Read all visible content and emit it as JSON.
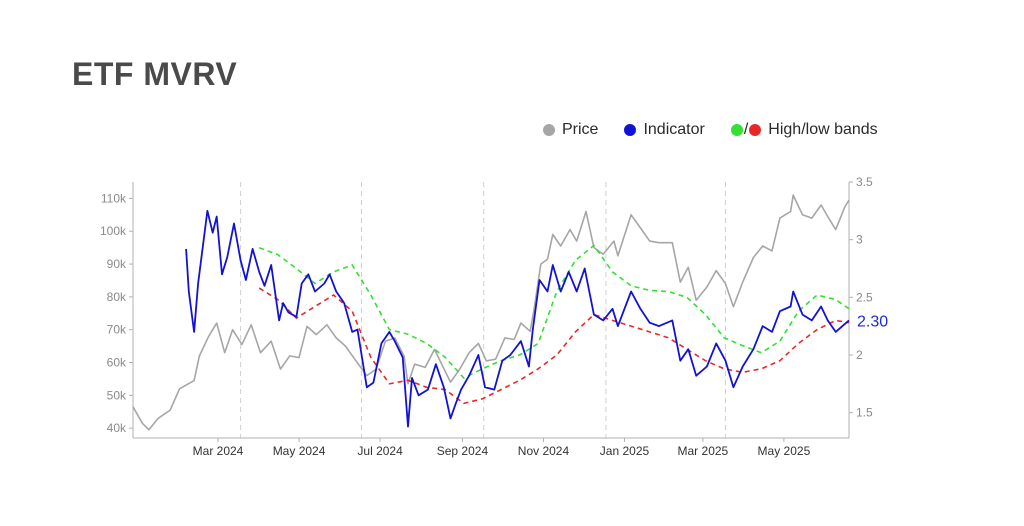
{
  "title": "ETF MVRV",
  "colors": {
    "price": "#a6a6a6",
    "indicator": "#1212d6",
    "high_band": "#33e033",
    "low_band": "#e82828",
    "axis": "#b0b0b0",
    "grid": "#cfcfcf"
  },
  "legend": {
    "price": "Price",
    "indicator": "Indicator",
    "slash": "/",
    "bands": "High/low bands"
  },
  "chart_data": {
    "type": "line",
    "x_tick_labels": [
      "Mar 2024",
      "May 2024",
      "Jul 2024",
      "Sep 2024",
      "Nov 2024",
      "Jan 2025",
      "Mar 2025",
      "May 2025"
    ],
    "y_left": {
      "ticks": [
        "40k",
        "50k",
        "60k",
        "70k",
        "80k",
        "90k",
        "100k",
        "110k"
      ],
      "range": [
        37000,
        115000
      ]
    },
    "y_right": {
      "ticks": [
        "1.5",
        "2",
        "2.5",
        "3",
        "3.5"
      ],
      "range": [
        1.28,
        3.5
      ]
    },
    "last_value_label": "2.30",
    "series": [
      {
        "name": "Price",
        "axis": "left",
        "points": [
          [
            "2024-01-11",
            46500
          ],
          [
            "2024-01-18",
            41500
          ],
          [
            "2024-01-23",
            39500
          ],
          [
            "2024-01-30",
            43000
          ],
          [
            "2024-02-08",
            45500
          ],
          [
            "2024-02-15",
            52000
          ],
          [
            "2024-02-26",
            54500
          ],
          [
            "2024-03-01",
            62000
          ],
          [
            "2024-03-08",
            68000
          ],
          [
            "2024-03-14",
            72000
          ],
          [
            "2024-03-20",
            63000
          ],
          [
            "2024-03-26",
            70000
          ],
          [
            "2024-04-02",
            65500
          ],
          [
            "2024-04-09",
            71500
          ],
          [
            "2024-04-16",
            63000
          ],
          [
            "2024-04-24",
            66500
          ],
          [
            "2024-05-01",
            58000
          ],
          [
            "2024-05-08",
            62000
          ],
          [
            "2024-05-15",
            61500
          ],
          [
            "2024-05-21",
            71000
          ],
          [
            "2024-05-28",
            68500
          ],
          [
            "2024-06-05",
            71500
          ],
          [
            "2024-06-12",
            67500
          ],
          [
            "2024-06-19",
            65000
          ],
          [
            "2024-06-26",
            61000
          ],
          [
            "2024-07-05",
            56000
          ],
          [
            "2024-07-12",
            58000
          ],
          [
            "2024-07-19",
            66500
          ],
          [
            "2024-07-26",
            67500
          ],
          [
            "2024-08-02",
            62000
          ],
          [
            "2024-08-05",
            53500
          ],
          [
            "2024-08-10",
            59500
          ],
          [
            "2024-08-18",
            58500
          ],
          [
            "2024-08-25",
            64000
          ],
          [
            "2024-08-31",
            59000
          ],
          [
            "2024-09-06",
            54000
          ],
          [
            "2024-09-13",
            58000
          ],
          [
            "2024-09-20",
            63000
          ],
          [
            "2024-09-27",
            65800
          ],
          [
            "2024-10-03",
            60500
          ],
          [
            "2024-10-10",
            61000
          ],
          [
            "2024-10-17",
            67500
          ],
          [
            "2024-10-24",
            67000
          ],
          [
            "2024-10-29",
            72000
          ],
          [
            "2024-11-05",
            69500
          ],
          [
            "2024-11-08",
            76500
          ],
          [
            "2024-11-13",
            90000
          ],
          [
            "2024-11-18",
            91500
          ],
          [
            "2024-11-22",
            99000
          ],
          [
            "2024-11-28",
            95500
          ],
          [
            "2024-12-05",
            100500
          ],
          [
            "2024-12-10",
            97000
          ],
          [
            "2024-12-17",
            106000
          ],
          [
            "2024-12-23",
            95000
          ],
          [
            "2024-12-30",
            93000
          ],
          [
            "2025-01-07",
            97000
          ],
          [
            "2025-01-10",
            92500
          ],
          [
            "2025-01-20",
            105000
          ],
          [
            "2025-01-27",
            101000
          ],
          [
            "2025-02-03",
            97000
          ],
          [
            "2025-02-10",
            96500
          ],
          [
            "2025-02-20",
            96500
          ],
          [
            "2025-02-26",
            84500
          ],
          [
            "2025-03-04",
            89000
          ],
          [
            "2025-03-10",
            79000
          ],
          [
            "2025-03-18",
            83000
          ],
          [
            "2025-03-25",
            88000
          ],
          [
            "2025-04-01",
            84000
          ],
          [
            "2025-04-07",
            77000
          ],
          [
            "2025-04-14",
            84500
          ],
          [
            "2025-04-22",
            92000
          ],
          [
            "2025-04-29",
            95500
          ],
          [
            "2025-05-06",
            94000
          ],
          [
            "2025-05-12",
            104000
          ],
          [
            "2025-05-20",
            106000
          ],
          [
            "2025-05-22",
            111000
          ],
          [
            "2025-05-29",
            105000
          ],
          [
            "2025-06-05",
            104000
          ],
          [
            "2025-06-12",
            108000
          ],
          [
            "2025-06-17",
            104500
          ],
          [
            "2025-06-23",
            100500
          ],
          [
            "2025-06-30",
            107500
          ],
          [
            "2025-07-03",
            109500
          ]
        ]
      },
      {
        "name": "Indicator",
        "axis": "right",
        "points": [
          [
            "2024-02-20",
            2.92
          ],
          [
            "2024-02-22",
            2.55
          ],
          [
            "2024-02-26",
            2.2
          ],
          [
            "2024-02-29",
            2.62
          ],
          [
            "2024-03-04",
            2.98
          ],
          [
            "2024-03-07",
            3.25
          ],
          [
            "2024-03-11",
            3.06
          ],
          [
            "2024-03-14",
            3.2
          ],
          [
            "2024-03-18",
            2.7
          ],
          [
            "2024-03-22",
            2.85
          ],
          [
            "2024-03-27",
            3.14
          ],
          [
            "2024-04-01",
            2.82
          ],
          [
            "2024-04-05",
            2.65
          ],
          [
            "2024-04-10",
            2.92
          ],
          [
            "2024-04-15",
            2.72
          ],
          [
            "2024-04-19",
            2.6
          ],
          [
            "2024-04-24",
            2.78
          ],
          [
            "2024-04-30",
            2.3
          ],
          [
            "2024-05-03",
            2.45
          ],
          [
            "2024-05-07",
            2.37
          ],
          [
            "2024-05-13",
            2.33
          ],
          [
            "2024-05-17",
            2.62
          ],
          [
            "2024-05-22",
            2.7
          ],
          [
            "2024-05-27",
            2.55
          ],
          [
            "2024-06-03",
            2.62
          ],
          [
            "2024-06-07",
            2.7
          ],
          [
            "2024-06-12",
            2.55
          ],
          [
            "2024-06-18",
            2.45
          ],
          [
            "2024-06-24",
            2.2
          ],
          [
            "2024-06-28",
            2.22
          ],
          [
            "2024-07-05",
            1.72
          ],
          [
            "2024-07-10",
            1.76
          ],
          [
            "2024-07-16",
            2.1
          ],
          [
            "2024-07-22",
            2.2
          ],
          [
            "2024-07-26",
            2.12
          ],
          [
            "2024-08-01",
            1.98
          ],
          [
            "2024-08-05",
            1.38
          ],
          [
            "2024-08-08",
            1.8
          ],
          [
            "2024-08-13",
            1.65
          ],
          [
            "2024-08-20",
            1.7
          ],
          [
            "2024-08-26",
            1.92
          ],
          [
            "2024-09-01",
            1.72
          ],
          [
            "2024-09-06",
            1.45
          ],
          [
            "2024-09-10",
            1.58
          ],
          [
            "2024-09-14",
            1.7
          ],
          [
            "2024-09-20",
            1.82
          ],
          [
            "2024-09-27",
            2.0
          ],
          [
            "2024-10-02",
            1.72
          ],
          [
            "2024-10-09",
            1.7
          ],
          [
            "2024-10-15",
            1.95
          ],
          [
            "2024-10-21",
            2.0
          ],
          [
            "2024-10-29",
            2.12
          ],
          [
            "2024-11-04",
            1.9
          ],
          [
            "2024-11-07",
            2.22
          ],
          [
            "2024-11-12",
            2.65
          ],
          [
            "2024-11-18",
            2.55
          ],
          [
            "2024-11-22",
            2.78
          ],
          [
            "2024-11-28",
            2.55
          ],
          [
            "2024-12-04",
            2.72
          ],
          [
            "2024-12-10",
            2.55
          ],
          [
            "2024-12-16",
            2.75
          ],
          [
            "2024-12-23",
            2.35
          ],
          [
            "2024-12-30",
            2.3
          ],
          [
            "2025-01-06",
            2.4
          ],
          [
            "2025-01-10",
            2.25
          ],
          [
            "2025-01-20",
            2.55
          ],
          [
            "2025-01-27",
            2.4
          ],
          [
            "2025-02-03",
            2.28
          ],
          [
            "2025-02-10",
            2.25
          ],
          [
            "2025-02-20",
            2.3
          ],
          [
            "2025-02-26",
            1.95
          ],
          [
            "2025-03-04",
            2.05
          ],
          [
            "2025-03-10",
            1.82
          ],
          [
            "2025-03-18",
            1.9
          ],
          [
            "2025-03-25",
            2.1
          ],
          [
            "2025-04-01",
            1.95
          ],
          [
            "2025-04-07",
            1.72
          ],
          [
            "2025-04-14",
            1.9
          ],
          [
            "2025-04-22",
            2.05
          ],
          [
            "2025-04-29",
            2.25
          ],
          [
            "2025-05-06",
            2.2
          ],
          [
            "2025-05-12",
            2.38
          ],
          [
            "2025-05-20",
            2.42
          ],
          [
            "2025-05-22",
            2.55
          ],
          [
            "2025-05-29",
            2.35
          ],
          [
            "2025-06-05",
            2.3
          ],
          [
            "2025-06-12",
            2.42
          ],
          [
            "2025-06-17",
            2.3
          ],
          [
            "2025-06-23",
            2.2
          ],
          [
            "2025-06-30",
            2.27
          ],
          [
            "2025-07-03",
            2.3
          ]
        ]
      },
      {
        "name": "High band",
        "axis": "right",
        "points": [
          [
            "2024-04-15",
            2.93
          ],
          [
            "2024-04-29",
            2.87
          ],
          [
            "2024-05-13",
            2.75
          ],
          [
            "2024-05-27",
            2.62
          ],
          [
            "2024-06-10",
            2.72
          ],
          [
            "2024-06-24",
            2.78
          ],
          [
            "2024-07-08",
            2.52
          ],
          [
            "2024-07-22",
            2.22
          ],
          [
            "2024-08-05",
            2.18
          ],
          [
            "2024-08-19",
            2.1
          ],
          [
            "2024-09-02",
            1.98
          ],
          [
            "2024-09-16",
            1.8
          ],
          [
            "2024-09-30",
            1.88
          ],
          [
            "2024-10-14",
            1.95
          ],
          [
            "2024-10-28",
            2.0
          ],
          [
            "2024-11-11",
            2.1
          ],
          [
            "2024-11-25",
            2.55
          ],
          [
            "2024-12-09",
            2.82
          ],
          [
            "2024-12-23",
            2.95
          ],
          [
            "2025-01-06",
            2.72
          ],
          [
            "2025-01-20",
            2.6
          ],
          [
            "2025-02-03",
            2.56
          ],
          [
            "2025-02-17",
            2.55
          ],
          [
            "2025-03-03",
            2.5
          ],
          [
            "2025-03-17",
            2.35
          ],
          [
            "2025-03-31",
            2.15
          ],
          [
            "2025-04-14",
            2.08
          ],
          [
            "2025-04-28",
            2.02
          ],
          [
            "2025-05-12",
            2.12
          ],
          [
            "2025-05-26",
            2.38
          ],
          [
            "2025-06-09",
            2.52
          ],
          [
            "2025-06-23",
            2.48
          ],
          [
            "2025-07-03",
            2.4
          ]
        ]
      },
      {
        "name": "Low band",
        "axis": "right",
        "points": [
          [
            "2024-04-15",
            2.58
          ],
          [
            "2024-04-29",
            2.48
          ],
          [
            "2024-05-13",
            2.32
          ],
          [
            "2024-05-27",
            2.42
          ],
          [
            "2024-06-10",
            2.52
          ],
          [
            "2024-06-24",
            2.38
          ],
          [
            "2024-07-08",
            1.98
          ],
          [
            "2024-07-22",
            1.75
          ],
          [
            "2024-08-05",
            1.78
          ],
          [
            "2024-08-19",
            1.72
          ],
          [
            "2024-09-02",
            1.7
          ],
          [
            "2024-09-16",
            1.58
          ],
          [
            "2024-09-30",
            1.62
          ],
          [
            "2024-10-14",
            1.7
          ],
          [
            "2024-10-28",
            1.78
          ],
          [
            "2024-11-11",
            1.88
          ],
          [
            "2024-11-25",
            2.0
          ],
          [
            "2024-12-09",
            2.2
          ],
          [
            "2024-12-23",
            2.35
          ],
          [
            "2025-01-06",
            2.3
          ],
          [
            "2025-01-20",
            2.25
          ],
          [
            "2025-02-03",
            2.2
          ],
          [
            "2025-02-17",
            2.15
          ],
          [
            "2025-03-03",
            2.05
          ],
          [
            "2025-03-17",
            1.95
          ],
          [
            "2025-03-31",
            1.88
          ],
          [
            "2025-04-14",
            1.85
          ],
          [
            "2025-04-28",
            1.88
          ],
          [
            "2025-05-12",
            1.95
          ],
          [
            "2025-05-26",
            2.1
          ],
          [
            "2025-06-09",
            2.22
          ],
          [
            "2025-06-23",
            2.3
          ],
          [
            "2025-07-03",
            2.28
          ]
        ]
      }
    ]
  }
}
